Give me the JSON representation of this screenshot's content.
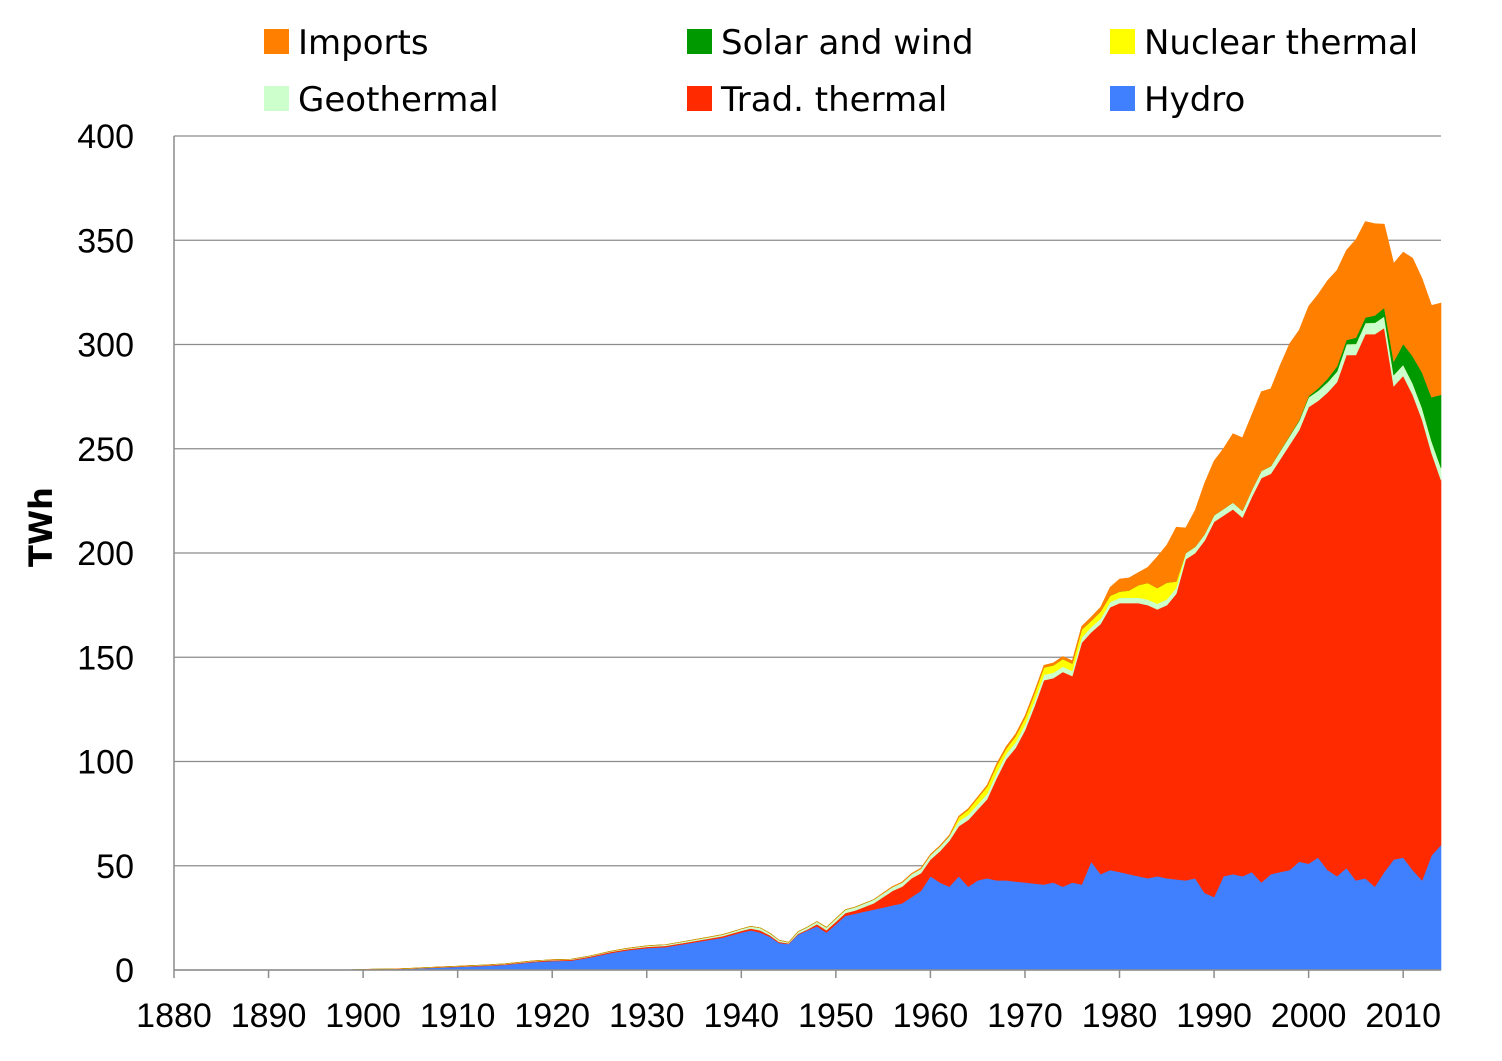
{
  "chart_data": {
    "type": "area",
    "stacked": true,
    "title": "",
    "xlabel": "",
    "ylabel": "TWh",
    "xlim": [
      1880,
      2014
    ],
    "ylim": [
      0,
      400
    ],
    "x_ticks": [
      "1880",
      "1890",
      "1900",
      "1910",
      "1920",
      "1930",
      "1940",
      "1950",
      "1960",
      "1970",
      "1980",
      "1990",
      "2000",
      "2010"
    ],
    "y_ticks": [
      "0",
      "50",
      "100",
      "150",
      "200",
      "250",
      "300",
      "350",
      "400"
    ],
    "grid": "horizontal",
    "legend_position": "top",
    "legend": [
      {
        "name": "Imports",
        "color": "#FF8000"
      },
      {
        "name": "Solar and wind",
        "color": "#009900"
      },
      {
        "name": "Nuclear thermal",
        "color": "#FFFF00"
      },
      {
        "name": "Geothermal",
        "color": "#CCFFCC"
      },
      {
        "name": "Trad. thermal",
        "color": "#FF2A00"
      },
      {
        "name": "Hydro",
        "color": "#4080FF"
      }
    ],
    "stack_order": [
      "Hydro",
      "Trad. thermal",
      "Geothermal",
      "Nuclear thermal",
      "Solar and wind",
      "Imports"
    ],
    "series": [
      {
        "name": "Hydro",
        "color": "#4080FF",
        "points": [
          [
            1880,
            0
          ],
          [
            1898,
            0
          ],
          [
            1900,
            0.3
          ],
          [
            1905,
            0.6
          ],
          [
            1907,
            1
          ],
          [
            1910,
            1.5
          ],
          [
            1913,
            2
          ],
          [
            1915,
            2.5
          ],
          [
            1918,
            3.8
          ],
          [
            1920,
            4.3
          ],
          [
            1922,
            4.5
          ],
          [
            1924,
            6
          ],
          [
            1926,
            8
          ],
          [
            1928,
            9.5
          ],
          [
            1930,
            10.5
          ],
          [
            1932,
            11
          ],
          [
            1934,
            12.5
          ],
          [
            1936,
            14
          ],
          [
            1938,
            15.5
          ],
          [
            1940,
            18
          ],
          [
            1941,
            19
          ],
          [
            1942,
            18
          ],
          [
            1943,
            16
          ],
          [
            1944,
            13
          ],
          [
            1945,
            12.5
          ],
          [
            1946,
            17
          ],
          [
            1948,
            21
          ],
          [
            1949,
            18
          ],
          [
            1950,
            22
          ],
          [
            1951,
            26
          ],
          [
            1953,
            28
          ],
          [
            1955,
            30
          ],
          [
            1957,
            32
          ],
          [
            1959,
            38
          ],
          [
            1960,
            45
          ],
          [
            1961,
            42
          ],
          [
            1962,
            40
          ],
          [
            1963,
            45
          ],
          [
            1964,
            40
          ],
          [
            1965,
            43
          ],
          [
            1966,
            44
          ],
          [
            1967,
            43
          ],
          [
            1968,
            43
          ],
          [
            1970,
            42
          ],
          [
            1972,
            41
          ],
          [
            1973,
            42
          ],
          [
            1974,
            40
          ],
          [
            1975,
            42
          ],
          [
            1976,
            41
          ],
          [
            1977,
            52
          ],
          [
            1978,
            46
          ],
          [
            1979,
            48
          ],
          [
            1980,
            47
          ],
          [
            1982,
            45
          ],
          [
            1983,
            44
          ],
          [
            1984,
            45
          ],
          [
            1985,
            44
          ],
          [
            1987,
            43
          ],
          [
            1988,
            44
          ],
          [
            1989,
            37
          ],
          [
            1990,
            35
          ],
          [
            1991,
            45
          ],
          [
            1992,
            46
          ],
          [
            1993,
            45
          ],
          [
            1994,
            47
          ],
          [
            1995,
            42
          ],
          [
            1996,
            46
          ],
          [
            1997,
            47
          ],
          [
            1998,
            48
          ],
          [
            1999,
            52
          ],
          [
            2000,
            51
          ],
          [
            2001,
            54
          ],
          [
            2002,
            48
          ],
          [
            2003,
            45
          ],
          [
            2004,
            49
          ],
          [
            2005,
            43
          ],
          [
            2006,
            44
          ],
          [
            2007,
            40
          ],
          [
            2008,
            47
          ],
          [
            2009,
            53
          ],
          [
            2010,
            54
          ],
          [
            2011,
            48
          ],
          [
            2012,
            43
          ],
          [
            2013,
            55
          ],
          [
            2014,
            60
          ]
        ]
      },
      {
        "name": "Trad. thermal",
        "color": "#FF2A00",
        "points": [
          [
            1880,
            0
          ],
          [
            1900,
            0
          ],
          [
            1910,
            0.2
          ],
          [
            1920,
            0.4
          ],
          [
            1930,
            0.6
          ],
          [
            1935,
            0.6
          ],
          [
            1940,
            0.8
          ],
          [
            1942,
            1
          ],
          [
            1944,
            0.5
          ],
          [
            1945,
            0.3
          ],
          [
            1947,
            0.5
          ],
          [
            1948,
            1
          ],
          [
            1950,
            1.2
          ],
          [
            1952,
            1.5
          ],
          [
            1954,
            3
          ],
          [
            1956,
            7
          ],
          [
            1958,
            9
          ],
          [
            1960,
            8
          ],
          [
            1961,
            15
          ],
          [
            1962,
            22
          ],
          [
            1963,
            24
          ],
          [
            1964,
            32
          ],
          [
            1965,
            34
          ],
          [
            1966,
            38
          ],
          [
            1967,
            49
          ],
          [
            1968,
            58
          ],
          [
            1969,
            64
          ],
          [
            1970,
            73
          ],
          [
            1971,
            85
          ],
          [
            1972,
            98
          ],
          [
            1973,
            98
          ],
          [
            1974,
            103
          ],
          [
            1975,
            99
          ],
          [
            1976,
            116
          ],
          [
            1977,
            110
          ],
          [
            1978,
            120
          ],
          [
            1979,
            126
          ],
          [
            1980,
            129
          ],
          [
            1981,
            130
          ],
          [
            1982,
            131
          ],
          [
            1983,
            131
          ],
          [
            1984,
            128
          ],
          [
            1985,
            131
          ],
          [
            1986,
            137
          ],
          [
            1987,
            154
          ],
          [
            1988,
            156
          ],
          [
            1989,
            169
          ],
          [
            1990,
            180
          ],
          [
            1991,
            173
          ],
          [
            1992,
            175
          ],
          [
            1993,
            172
          ],
          [
            1994,
            180
          ],
          [
            1995,
            194
          ],
          [
            1996,
            192
          ],
          [
            1997,
            198
          ],
          [
            1998,
            204
          ],
          [
            1999,
            207
          ],
          [
            2000,
            219
          ],
          [
            2001,
            219
          ],
          [
            2002,
            229
          ],
          [
            2003,
            237
          ],
          [
            2004,
            246
          ],
          [
            2005,
            252
          ],
          [
            2006,
            261
          ],
          [
            2007,
            265
          ],
          [
            2008,
            261
          ],
          [
            2009,
            227
          ],
          [
            2010,
            231
          ],
          [
            2011,
            228
          ],
          [
            2012,
            221
          ],
          [
            2013,
            193
          ],
          [
            2014,
            175
          ]
        ]
      },
      {
        "name": "Geothermal",
        "color": "#CCFFCC",
        "points": [
          [
            1880,
            0
          ],
          [
            1904,
            0
          ],
          [
            1905,
            0.1
          ],
          [
            1915,
            0.2
          ],
          [
            1925,
            0.3
          ],
          [
            1930,
            0.5
          ],
          [
            1939,
            0.8
          ],
          [
            1942,
            1.2
          ],
          [
            1944,
            0.8
          ],
          [
            1945,
            0.5
          ],
          [
            1946,
            1
          ],
          [
            1950,
            1.5
          ],
          [
            1955,
            1.8
          ],
          [
            1960,
            2.2
          ],
          [
            1965,
            2.5
          ],
          [
            1970,
            2.7
          ],
          [
            1975,
            2.5
          ],
          [
            1980,
            2.5
          ],
          [
            1985,
            2.8
          ],
          [
            1990,
            3.1
          ],
          [
            1995,
            3.4
          ],
          [
            2000,
            4.7
          ],
          [
            2005,
            5.3
          ],
          [
            2008,
            5.5
          ],
          [
            2010,
            5.3
          ],
          [
            2012,
            5.6
          ],
          [
            2014,
            5.9
          ]
        ]
      },
      {
        "name": "Nuclear thermal",
        "color": "#FFFF00",
        "points": [
          [
            1880,
            0
          ],
          [
            1962,
            0
          ],
          [
            1963,
            2
          ],
          [
            1964,
            2.5
          ],
          [
            1965,
            3
          ],
          [
            1966,
            3.5
          ],
          [
            1967,
            3.5
          ],
          [
            1968,
            2.5
          ],
          [
            1969,
            3
          ],
          [
            1970,
            3.2
          ],
          [
            1971,
            3.4
          ],
          [
            1972,
            3.5
          ],
          [
            1973,
            3.6
          ],
          [
            1974,
            3.6
          ],
          [
            1975,
            3.5
          ],
          [
            1976,
            3.8
          ],
          [
            1977,
            3
          ],
          [
            1978,
            3.5
          ],
          [
            1979,
            3
          ],
          [
            1980,
            3
          ],
          [
            1981,
            3.5
          ],
          [
            1982,
            6
          ],
          [
            1983,
            8
          ],
          [
            1984,
            7.5
          ],
          [
            1985,
            8
          ],
          [
            1986,
            3
          ],
          [
            1987,
            0.1
          ],
          [
            1988,
            0
          ],
          [
            2014,
            0
          ]
        ]
      },
      {
        "name": "Solar and wind",
        "color": "#009900",
        "points": [
          [
            1880,
            0
          ],
          [
            1995,
            0
          ],
          [
            1998,
            0.3
          ],
          [
            2000,
            0.6
          ],
          [
            2001,
            1.2
          ],
          [
            2002,
            1.7
          ],
          [
            2003,
            2.5
          ],
          [
            2004,
            2
          ],
          [
            2005,
            3
          ],
          [
            2006,
            2.6
          ],
          [
            2007,
            3.5
          ],
          [
            2008,
            4.2
          ],
          [
            2009,
            6.5
          ],
          [
            2010,
            10
          ],
          [
            2011,
            13
          ],
          [
            2012,
            17
          ],
          [
            2013,
            21
          ],
          [
            2014,
            35
          ]
        ]
      },
      {
        "name": "Imports",
        "color": "#FF8000",
        "points": [
          [
            1880,
            0
          ],
          [
            1954,
            0
          ],
          [
            1955,
            0.2
          ],
          [
            1960,
            0.3
          ],
          [
            1965,
            0.5
          ],
          [
            1968,
            1
          ],
          [
            1970,
            1
          ],
          [
            1972,
            1
          ],
          [
            1974,
            1.2
          ],
          [
            1976,
            1.5
          ],
          [
            1978,
            2
          ],
          [
            1979,
            4
          ],
          [
            1980,
            6
          ],
          [
            1981,
            6
          ],
          [
            1982,
            6
          ],
          [
            1983,
            7.5
          ],
          [
            1984,
            15
          ],
          [
            1985,
            18
          ],
          [
            1986,
            26
          ],
          [
            1987,
            12
          ],
          [
            1988,
            17.5
          ],
          [
            1989,
            24.5
          ],
          [
            1990,
            26
          ],
          [
            1991,
            29
          ],
          [
            1992,
            33
          ],
          [
            1993,
            35
          ],
          [
            1994,
            36
          ],
          [
            1995,
            38
          ],
          [
            1996,
            37
          ],
          [
            1997,
            41
          ],
          [
            1998,
            44
          ],
          [
            1999,
            43
          ],
          [
            2000,
            43
          ],
          [
            2001,
            45
          ],
          [
            2002,
            47
          ],
          [
            2003,
            46
          ],
          [
            2004,
            43
          ],
          [
            2005,
            47
          ],
          [
            2006,
            46
          ],
          [
            2007,
            44
          ],
          [
            2008,
            40
          ],
          [
            2009,
            47
          ],
          [
            2010,
            44
          ],
          [
            2011,
            47
          ],
          [
            2012,
            45
          ],
          [
            2013,
            44
          ],
          [
            2014,
            44
          ]
        ]
      }
    ]
  }
}
